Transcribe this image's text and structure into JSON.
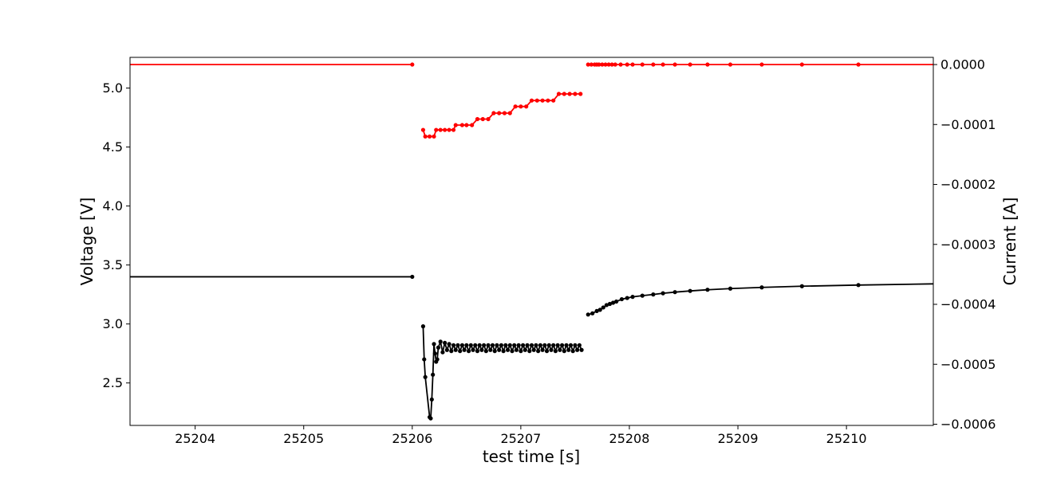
{
  "chart_data": {
    "type": "line",
    "xlabel": "test time [s]",
    "ylabel_left": "Voltage [V]",
    "ylabel_right": "Current [A]",
    "xlim": [
      25203.4,
      25210.8
    ],
    "ylim_left": [
      2.14,
      5.26
    ],
    "ylim_right": [
      -0.000602,
      1.2e-05
    ],
    "x_ticks": [
      {
        "value": 25204,
        "label": "25204"
      },
      {
        "value": 25205,
        "label": "25205"
      },
      {
        "value": 25206,
        "label": "25206"
      },
      {
        "value": 25207,
        "label": "25207"
      },
      {
        "value": 25208,
        "label": "25208"
      },
      {
        "value": 25209,
        "label": "25209"
      },
      {
        "value": 25210,
        "label": "25210"
      }
    ],
    "y_left_ticks": [
      {
        "value": 2.5,
        "label": "2.5"
      },
      {
        "value": 3.0,
        "label": "3.0"
      },
      {
        "value": 3.5,
        "label": "3.5"
      },
      {
        "value": 4.0,
        "label": "4.0"
      },
      {
        "value": 4.5,
        "label": "4.5"
      },
      {
        "value": 5.0,
        "label": "5.0"
      }
    ],
    "y_right_ticks": [
      {
        "value": 0.0,
        "label": "0.0000"
      },
      {
        "value": -0.0001,
        "label": "−0.0001"
      },
      {
        "value": -0.0002,
        "label": "−0.0002"
      },
      {
        "value": -0.0003,
        "label": "−0.0003"
      },
      {
        "value": -0.0004,
        "label": "−0.0004"
      },
      {
        "value": -0.0005,
        "label": "−0.0005"
      },
      {
        "value": -0.0006,
        "label": "−0.0006"
      }
    ],
    "series": [
      {
        "axis": "right",
        "color": "#ff0000",
        "segments": [
          {
            "x": [
              25203.4,
              25206.0
            ],
            "y": [
              0.0,
              0.0
            ],
            "markers": [
              false,
              true
            ]
          },
          {
            "x": [
              25206.1,
              25206.12,
              25206.16,
              25206.2,
              25206.22,
              25206.26,
              25206.3,
              25206.34,
              25206.38,
              25206.4,
              25206.46,
              25206.5,
              25206.55,
              25206.6,
              25206.65,
              25206.7,
              25206.75,
              25206.8,
              25206.85,
              25206.9,
              25206.95,
              25207.0,
              25207.05,
              25207.1,
              25207.15,
              25207.2,
              25207.25,
              25207.3,
              25207.35,
              25207.4,
              25207.45,
              25207.5,
              25207.55
            ],
            "y": [
              -0.000109,
              -0.00012,
              -0.00012,
              -0.00012,
              -0.000109,
              -0.000109,
              -0.000109,
              -0.000109,
              -0.000109,
              -0.000101,
              -0.000101,
              -0.000101,
              -0.000101,
              -9.1e-05,
              -9.1e-05,
              -9.1e-05,
              -8.1e-05,
              -8.1e-05,
              -8.1e-05,
              -8.1e-05,
              -7e-05,
              -7e-05,
              -7e-05,
              -6e-05,
              -6e-05,
              -6e-05,
              -6e-05,
              -6e-05,
              -4.9e-05,
              -4.9e-05,
              -4.9e-05,
              -4.9e-05,
              -4.9e-05
            ]
          },
          {
            "x": [
              25207.62,
              25207.65,
              25207.68,
              25207.7,
              25207.72,
              25207.75,
              25207.78,
              25207.81,
              25207.84,
              25207.87,
              25207.92,
              25207.98,
              25208.03,
              25208.12,
              25208.22,
              25208.31,
              25208.42,
              25208.56,
              25208.72,
              25208.93,
              25209.22,
              25209.59,
              25210.11,
              25210.8
            ],
            "y": [
              0.0,
              0.0,
              0.0,
              0.0,
              0.0,
              0.0,
              0.0,
              0.0,
              0.0,
              0.0,
              0.0,
              0.0,
              0.0,
              0.0,
              0.0,
              0.0,
              0.0,
              0.0,
              0.0,
              0.0,
              0.0,
              0.0,
              0.0,
              0.0
            ],
            "last_marker": false
          }
        ]
      },
      {
        "axis": "left",
        "color": "#000000",
        "segments": [
          {
            "x": [
              25203.4,
              25206.0
            ],
            "y": [
              3.4,
              3.4
            ],
            "markers": [
              false,
              true
            ]
          },
          {
            "x": [
              25206.1,
              25206.11,
              25206.12,
              25206.16,
              25206.17,
              25206.18,
              25206.19,
              25206.2,
              25206.21,
              25206.22,
              25206.23,
              25206.24,
              25206.26,
              25206.28,
              25206.3,
              25206.32,
              25206.34,
              25206.36,
              25206.38,
              25206.4,
              25206.42,
              25206.44,
              25206.46,
              25206.48,
              25206.5,
              25206.52,
              25206.54,
              25206.56,
              25206.58,
              25206.6,
              25206.62,
              25206.64,
              25206.66,
              25206.68,
              25206.7,
              25206.72,
              25206.74,
              25206.76,
              25206.78,
              25206.8,
              25206.82,
              25206.84,
              25206.86,
              25206.88,
              25206.9,
              25206.92,
              25206.94,
              25206.96,
              25206.98,
              25207.0,
              25207.02,
              25207.04,
              25207.06,
              25207.08,
              25207.1,
              25207.12,
              25207.14,
              25207.16,
              25207.18,
              25207.2,
              25207.22,
              25207.24,
              25207.26,
              25207.28,
              25207.3,
              25207.32,
              25207.34,
              25207.36,
              25207.38,
              25207.4,
              25207.42,
              25207.44,
              25207.46,
              25207.48,
              25207.5,
              25207.52,
              25207.54,
              25207.56
            ],
            "y": [
              2.98,
              2.7,
              2.55,
              2.21,
              2.2,
              2.36,
              2.57,
              2.83,
              2.75,
              2.68,
              2.7,
              2.8,
              2.85,
              2.76,
              2.84,
              2.78,
              2.83,
              2.77,
              2.82,
              2.78,
              2.82,
              2.77,
              2.82,
              2.78,
              2.82,
              2.77,
              2.82,
              2.78,
              2.82,
              2.77,
              2.82,
              2.78,
              2.82,
              2.77,
              2.82,
              2.78,
              2.82,
              2.77,
              2.82,
              2.78,
              2.82,
              2.77,
              2.82,
              2.78,
              2.82,
              2.77,
              2.82,
              2.78,
              2.82,
              2.77,
              2.82,
              2.78,
              2.82,
              2.77,
              2.82,
              2.78,
              2.82,
              2.77,
              2.82,
              2.78,
              2.82,
              2.77,
              2.82,
              2.78,
              2.82,
              2.77,
              2.82,
              2.78,
              2.82,
              2.77,
              2.82,
              2.78,
              2.82,
              2.77,
              2.82,
              2.78,
              2.82,
              2.78
            ]
          },
          {
            "x": [
              25207.62,
              25207.66,
              25207.7,
              25207.73,
              25207.76,
              25207.79,
              25207.82,
              25207.85,
              25207.88,
              25207.93,
              25207.98,
              25208.03,
              25208.12,
              25208.22,
              25208.31,
              25208.42,
              25208.56,
              25208.72,
              25208.93,
              25209.22,
              25209.59,
              25210.11,
              25210.8
            ],
            "y": [
              3.08,
              3.09,
              3.11,
              3.12,
              3.14,
              3.16,
              3.17,
              3.18,
              3.19,
              3.21,
              3.22,
              3.23,
              3.24,
              3.25,
              3.26,
              3.27,
              3.28,
              3.29,
              3.3,
              3.31,
              3.32,
              3.33,
              3.34
            ],
            "last_marker": false
          }
        ]
      }
    ]
  }
}
